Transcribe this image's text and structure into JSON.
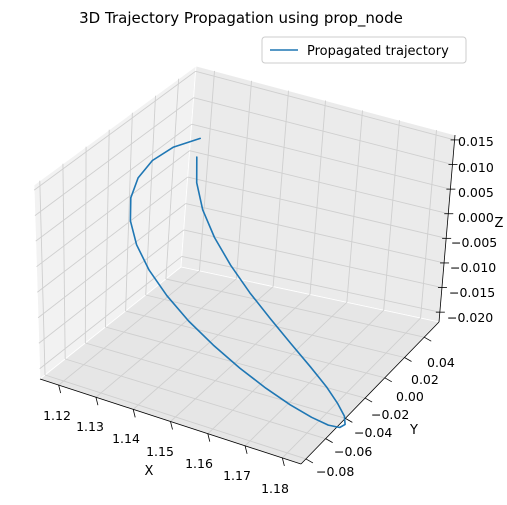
{
  "chart_data": {
    "type": "line",
    "projection": "3d",
    "title": "3D Trajectory Propagation using prop_node",
    "xlabel": "X",
    "ylabel": "Y",
    "zlabel": "Z",
    "xlim": [
      1.115,
      1.185
    ],
    "ylim": [
      -0.085,
      0.055
    ],
    "zlim": [
      -0.022,
      0.016
    ],
    "xticks": [
      "1.12",
      "1.13",
      "1.14",
      "1.15",
      "1.16",
      "1.17",
      "1.18"
    ],
    "yticks": [
      "−0.08",
      "−0.06",
      "−0.04",
      "−0.02",
      "0.00",
      "0.02",
      "0.04"
    ],
    "zticks": [
      "−0.020",
      "−0.015",
      "−0.010",
      "−0.005",
      "0.000",
      "0.005",
      "0.010",
      "0.015"
    ],
    "legend_position": "top-right",
    "grid": true,
    "series": [
      {
        "name": "Propagated trajectory",
        "color": "#1f77b4",
        "x": [
          1.1198,
          1.1229,
          1.1276,
          1.1337,
          1.1409,
          1.1487,
          1.1568,
          1.1647,
          1.1719,
          1.1781,
          1.1828,
          1.186,
          1.1874,
          1.1869,
          1.1846,
          1.1807,
          1.1753,
          1.1689,
          1.1618,
          1.1544,
          1.1473,
          1.1408,
          1.1352,
          1.1308,
          1.1279,
          1.1266,
          1.127,
          1.1291,
          1.1329,
          1.1381
        ],
        "y": [
          0.0449,
          0.0352,
          0.0254,
          0.0159,
          0.0066,
          -0.0025,
          -0.0112,
          -0.0193,
          -0.0267,
          -0.0335,
          -0.0396,
          -0.0448,
          -0.0493,
          -0.0529,
          -0.0558,
          -0.0579,
          -0.0592,
          -0.0596,
          -0.0592,
          -0.0581,
          -0.0563,
          -0.0539,
          -0.0509,
          -0.0473,
          -0.0432,
          -0.0385,
          -0.0335,
          -0.0279,
          -0.0221,
          -0.0159
        ],
        "z": [
          0.0012,
          -0.0016,
          -0.0044,
          -0.0071,
          -0.0096,
          -0.0119,
          -0.0139,
          -0.0158,
          -0.0174,
          -0.0187,
          -0.0198,
          -0.0205,
          -0.0209,
          -0.0209,
          -0.0204,
          -0.0194,
          -0.018,
          -0.0162,
          -0.014,
          -0.0114,
          -0.0086,
          -0.0055,
          -0.0022,
          0.0012,
          0.0046,
          0.008,
          0.0111,
          0.0139,
          0.0162,
          0.0178
        ]
      }
    ]
  }
}
